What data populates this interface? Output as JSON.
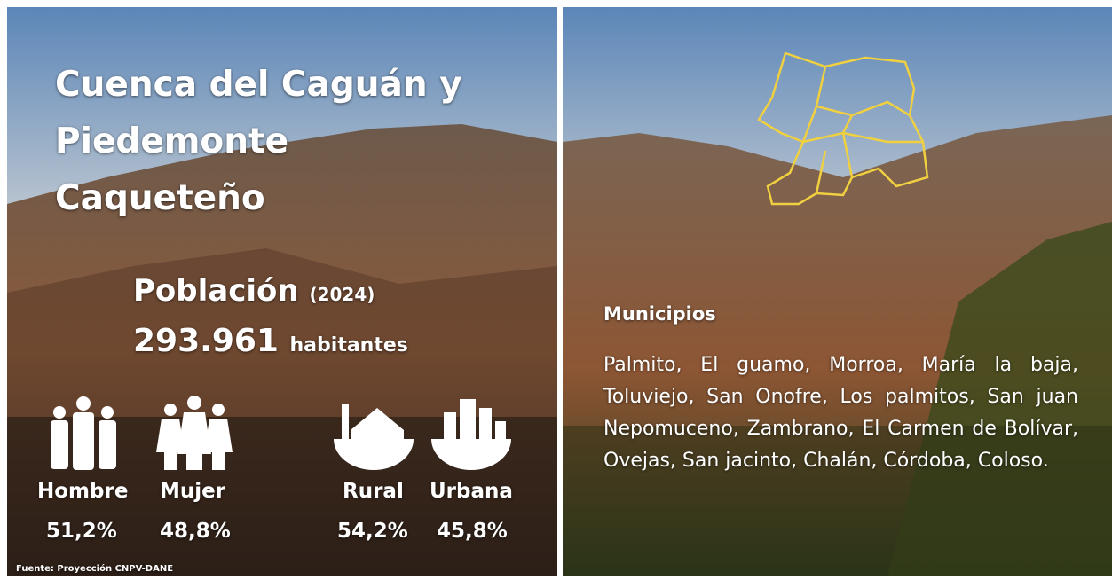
{
  "header": {
    "title": "Cuenca del Caguán y Piedemonte Caqueteño"
  },
  "population": {
    "label": "Población",
    "year": "(2024)",
    "value": "293.961",
    "unit": "habitantes"
  },
  "stats": [
    {
      "label": "Hombre",
      "value": "51,2%"
    },
    {
      "label": "Mujer",
      "value": "48,8%"
    },
    {
      "label": "Rural",
      "value": "54,2%"
    },
    {
      "label": "Urbana",
      "value": "45,8%"
    }
  ],
  "source": "Fuente: Proyección CNPV-DANE",
  "municipalities": {
    "heading": "Municipios",
    "list": "Palmito, El guamo, Morroa, María la baja, Toluviejo, San Onofre, Los palmitos, San juan Nepomuceno, Zambrano, El Carmen de Bolívar, Ovejas, San jacinto, Chalán, Córdoba, Coloso."
  }
}
